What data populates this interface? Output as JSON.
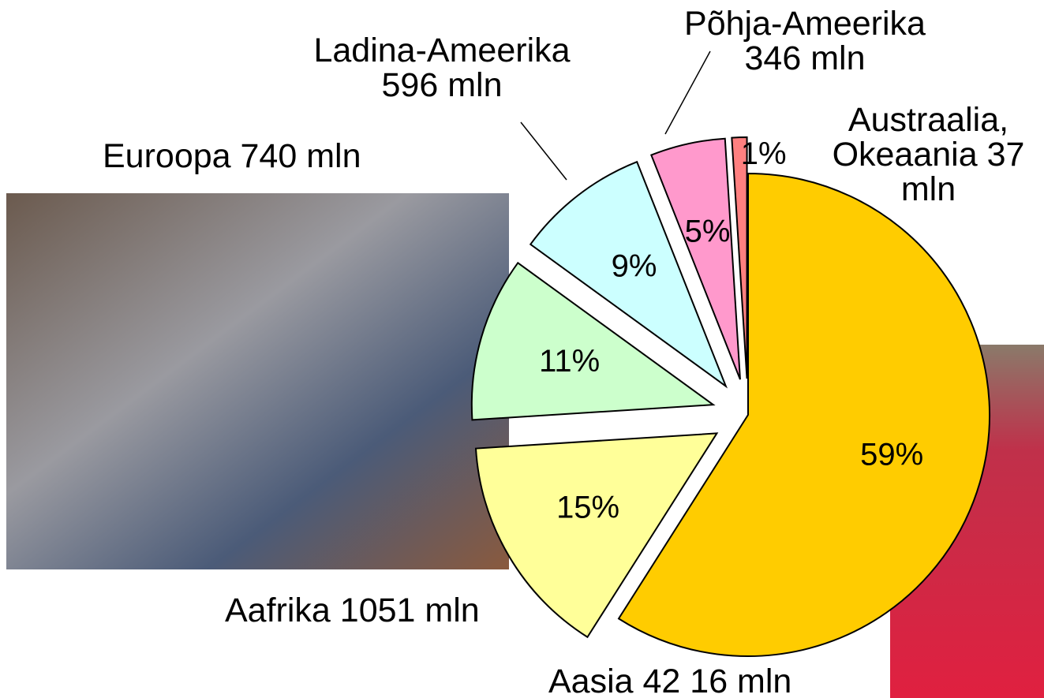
{
  "chart_data": {
    "type": "pie",
    "categories": [
      "Aasia 42 16 mln",
      "Aafrika 1051 mln",
      "Euroopa  740 mln",
      "Ladina-Ameerika\n596 mln",
      "Põhja-Ameerika\n346 mln",
      "Austraalia,\nOkeaania  37\nmln"
    ],
    "values": [
      59,
      15,
      11,
      9,
      5,
      1
    ],
    "value_labels": [
      "59%",
      "15%",
      "11%",
      "9%",
      "5%",
      "1%"
    ],
    "colors": [
      "#ffcc00",
      "#ffff99",
      "#ccffcc",
      "#ccffff",
      "#ff99cc",
      "#ff8080"
    ]
  }
}
